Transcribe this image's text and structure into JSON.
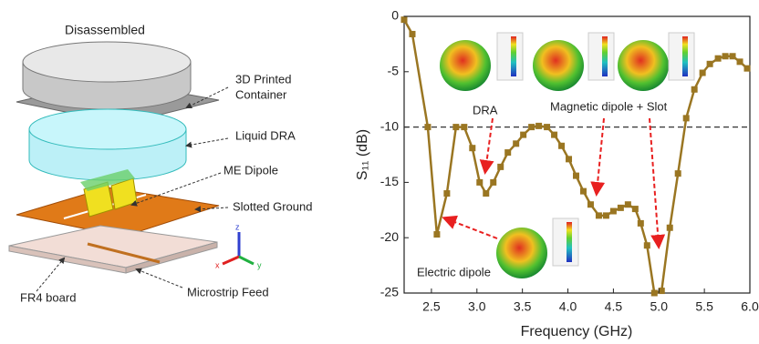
{
  "diagram": {
    "title": "Disassembled",
    "labels": {
      "container": [
        "3D Printed",
        "Container"
      ],
      "dra": "Liquid DRA",
      "dipole": "ME Dipole",
      "ground": "Slotted Ground",
      "fr4": "FR4 board",
      "feed": "Microstrip Feed"
    },
    "axes": [
      "x",
      "y",
      "z"
    ]
  },
  "chart_data": {
    "type": "line",
    "x_label": "Frequency (GHz)",
    "y_label": "S₁₁ (dB)",
    "xlim": [
      2.2,
      6.0
    ],
    "ylim": [
      -25,
      0
    ],
    "xticks": [
      2.5,
      {
        "value": 3,
        "label": "3.0"
      },
      3.5,
      {
        "value": 4,
        "label": "4.0"
      },
      4.5,
      {
        "value": 5,
        "label": "5.0"
      },
      5.5,
      {
        "value": 6,
        "label": "6.0"
      }
    ],
    "yticks": [
      0,
      -5,
      -10,
      -15,
      -20,
      -25
    ],
    "hline": -10,
    "annotations": [
      "DRA",
      "Magnetic dipole + Slot",
      "Electric dipole"
    ],
    "series": [
      {
        "name": "S11",
        "color": "#9a7622",
        "x": [
          2.2,
          2.29,
          2.46,
          2.56,
          2.67,
          2.77,
          2.86,
          2.95,
          3.03,
          3.1,
          3.18,
          3.26,
          3.34,
          3.43,
          3.51,
          3.6,
          3.68,
          3.77,
          3.85,
          3.93,
          4.01,
          4.09,
          4.17,
          4.25,
          4.34,
          4.42,
          4.5,
          4.58,
          4.66,
          4.74,
          4.8,
          4.87,
          4.95,
          5.03,
          5.12,
          5.21,
          5.3,
          5.39,
          5.48,
          5.56,
          5.65,
          5.73,
          5.81,
          5.89,
          5.97
        ],
        "values": [
          -0.3,
          -1.6,
          -10,
          -19.7,
          -16,
          -10,
          -10,
          -11.9,
          -15,
          -16,
          -15,
          -13.6,
          -12.3,
          -11.5,
          -10.7,
          -10,
          -9.9,
          -10,
          -10.7,
          -11.7,
          -12.9,
          -14.4,
          -15.8,
          -17,
          -18,
          -18,
          -17.6,
          -17.3,
          -17,
          -17.4,
          -18.7,
          -20.7,
          -25,
          -24.8,
          -19.1,
          -14.2,
          -9.2,
          -6.6,
          -5.1,
          -4.3,
          -3.8,
          -3.6,
          -3.6,
          -4.1,
          -4.7
        ]
      }
    ]
  }
}
